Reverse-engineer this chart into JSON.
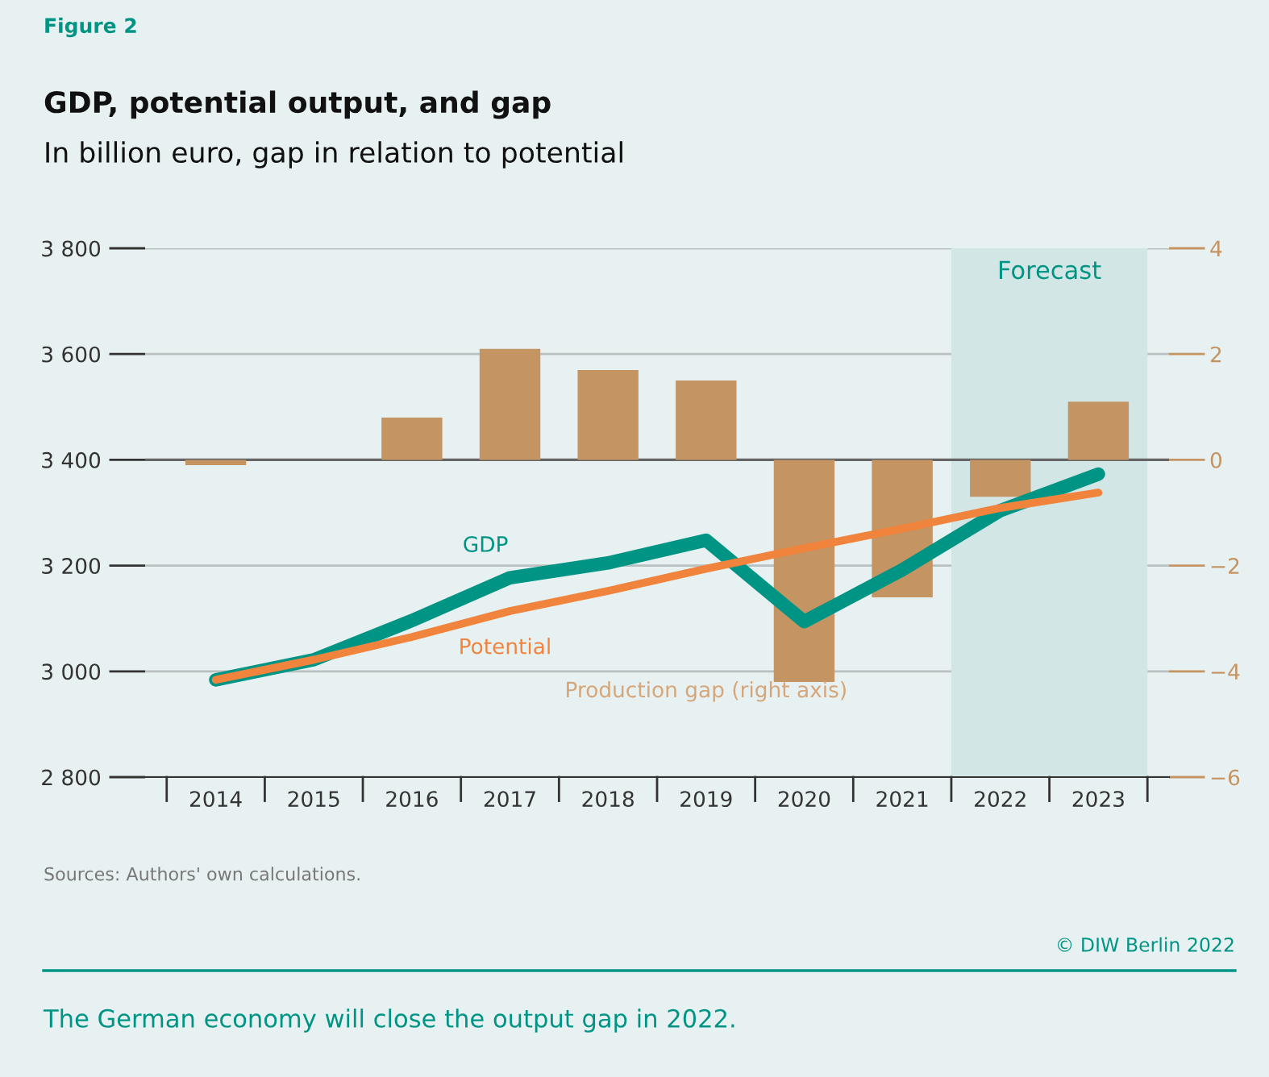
{
  "chart_data": {
    "type": "bar",
    "title": "GDP, potential output, and gap",
    "subtitle": "In billion euro, gap in relation to potential",
    "categories": [
      "2014",
      "2015",
      "2016",
      "2017",
      "2018",
      "2019",
      "2020",
      "2021",
      "2022",
      "2023"
    ],
    "series": [
      {
        "name": "Production gap (right axis)",
        "axis": "y2",
        "color": "#c49463",
        "values": [
          -0.1,
          0.0,
          0.8,
          2.1,
          1.7,
          1.5,
          -4.2,
          -2.6,
          -0.7,
          1.1
        ]
      },
      {
        "name": "GDP",
        "type": "line",
        "color": "#009485",
        "values": [
          2984,
          3022,
          3096,
          3177,
          3205,
          3248,
          3094,
          3192,
          3304,
          3373
        ]
      },
      {
        "name": "Potential",
        "type": "line",
        "color": "#f0843c",
        "values": [
          2984,
          3022,
          3065,
          3114,
          3152,
          3194,
          3233,
          3270,
          3309,
          3338
        ]
      }
    ],
    "ylim": [
      2800,
      3800
    ],
    "yticks": [
      {
        "value": 2800,
        "label": "2 800"
      },
      {
        "value": 3000,
        "label": "3 000"
      },
      {
        "value": 3200,
        "label": "3 200"
      },
      {
        "value": 3400,
        "label": "3 400"
      },
      {
        "value": 3600,
        "label": "3 600"
      },
      {
        "value": 3800,
        "label": "3 800"
      }
    ],
    "y2lim": [
      -6,
      4
    ],
    "y2ticks": [
      {
        "value": -6,
        "label": "−6"
      },
      {
        "value": -4,
        "label": "−4"
      },
      {
        "value": -2,
        "label": "−2"
      },
      0,
      2,
      4
    ],
    "bands": [
      {
        "axis": "x",
        "from": "2022",
        "to": "2023",
        "label": "Forecast",
        "color": "#d3e6e6"
      }
    ],
    "grid": "y",
    "legend": false,
    "annotations": [
      "Figure 2",
      "Sources: Authors' own calculations.",
      "© DIW Berlin 2022",
      "The German economy will close the output gap in 2022."
    ]
  }
}
